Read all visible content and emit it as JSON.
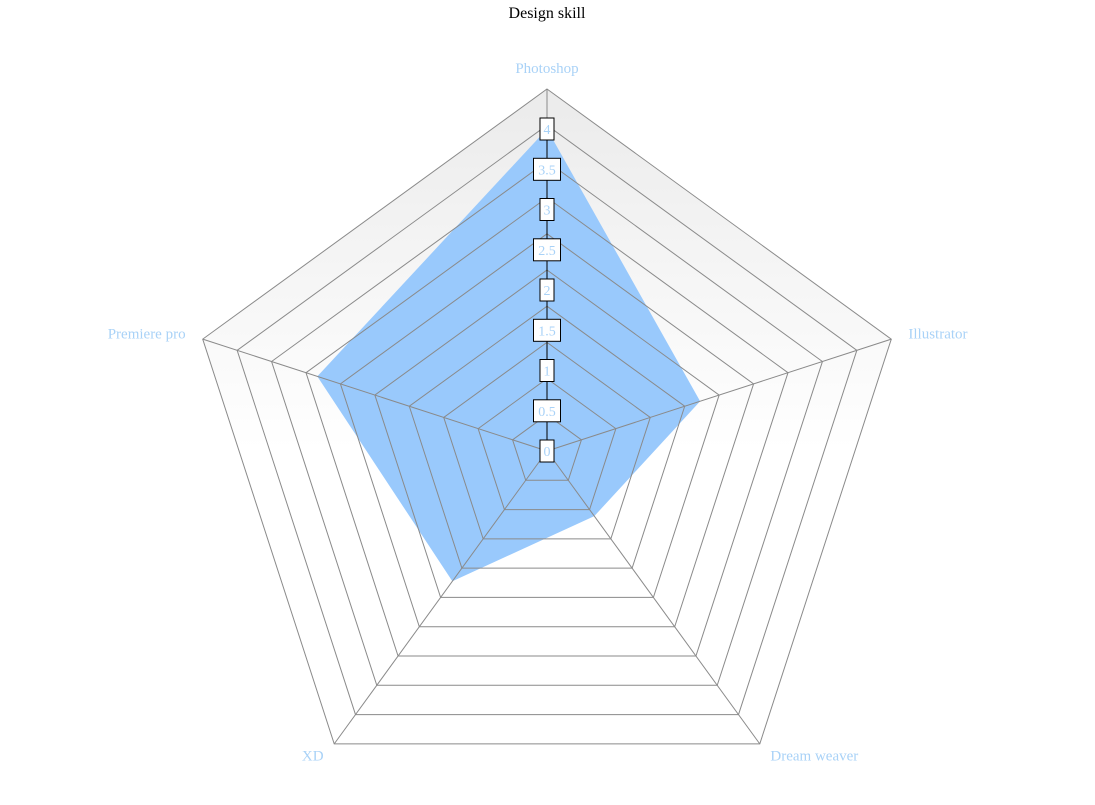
{
  "chart_data": {
    "type": "radar",
    "title": "Design skill",
    "categories": [
      "Photoshop",
      "Illustrator",
      "Dream weaver",
      "XD",
      "Premiere pro"
    ],
    "series": [
      {
        "values": [
          4,
          2,
          1,
          2,
          3
        ]
      }
    ],
    "rlim": [
      0,
      4
    ],
    "ticks": [
      "0",
      "0.5",
      "1",
      "1.5",
      "2",
      "2.5",
      "3",
      "3.5",
      "4"
    ],
    "grid_levels": 10,
    "legend": "none"
  },
  "colors": {
    "series_fill": "#99c9fc",
    "grid_line": "#8a8a8a",
    "category_label": "#a9d2f7",
    "tick_label": "#a9d2f7",
    "background_band": "#f0f0f0",
    "title": "#000000"
  }
}
